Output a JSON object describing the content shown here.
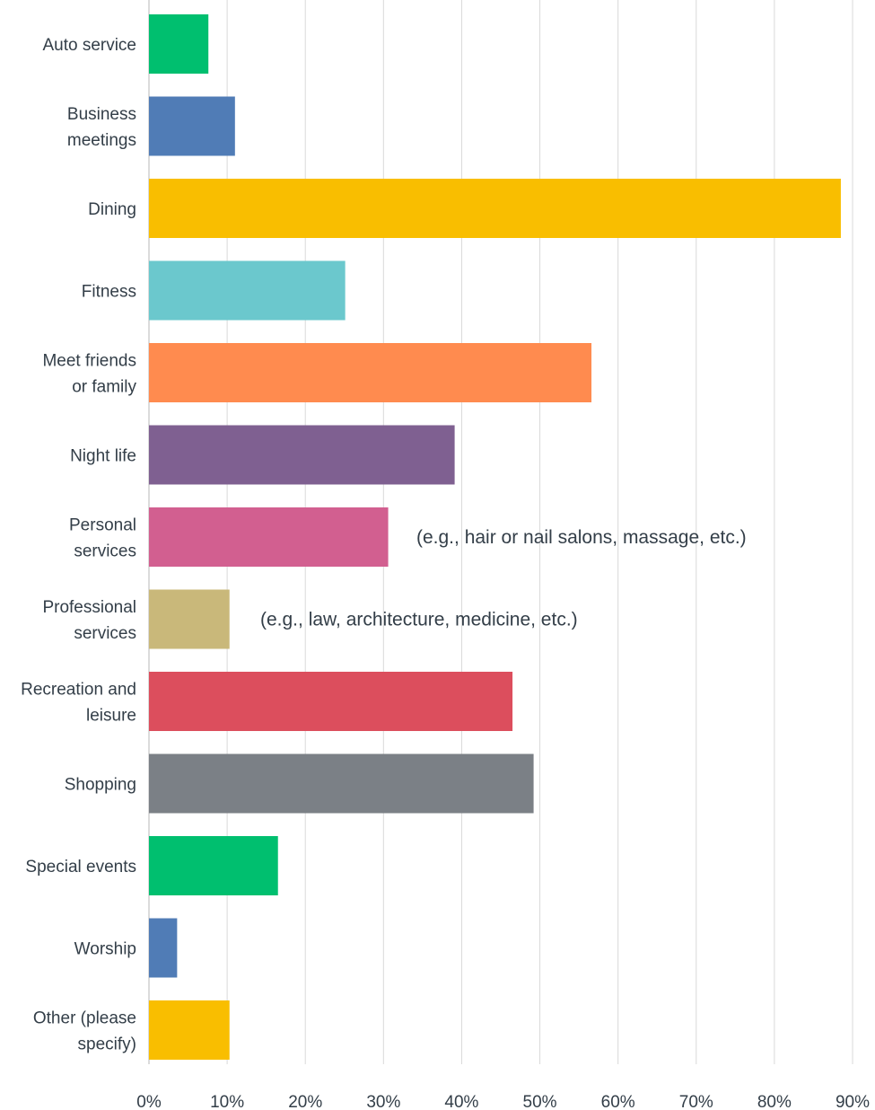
{
  "chart_data": {
    "type": "bar",
    "orientation": "horizontal",
    "categories": [
      [
        "Auto service"
      ],
      [
        "Business",
        "meetings"
      ],
      [
        "Dining"
      ],
      [
        "Fitness"
      ],
      [
        "Meet friends",
        "or family"
      ],
      [
        "Night life"
      ],
      [
        "Personal",
        "services"
      ],
      [
        "Professional",
        "services"
      ],
      [
        "Recreation and",
        "leisure"
      ],
      [
        "Shopping"
      ],
      [
        "Special events"
      ],
      [
        "Worship"
      ],
      [
        "Other (please",
        "specify)"
      ]
    ],
    "values": [
      7.6,
      11.0,
      88.5,
      25.1,
      56.6,
      39.1,
      30.6,
      10.3,
      46.5,
      49.2,
      16.5,
      3.6,
      10.3
    ],
    "colors": [
      "#00bf6f",
      "#507cb6",
      "#f9be00",
      "#6bc8cd",
      "#ff8b4f",
      "#7f6091",
      "#d25f90",
      "#c9b87a",
      "#dc4e5d",
      "#7b8086",
      "#00bf6f",
      "#507cb6",
      "#f9be00"
    ],
    "xlim": [
      0,
      90
    ],
    "xticks": [
      "0%",
      "10%",
      "20%",
      "30%",
      "40%",
      "50%",
      "60%",
      "70%",
      "80%",
      "90%"
    ],
    "grid": true,
    "annotations": [
      {
        "category_index": 6,
        "text": "(e.g., hair or nail salons, massage, etc.)"
      },
      {
        "category_index": 7,
        "text": "(e.g., law, architecture, medicine, etc.)"
      }
    ]
  }
}
